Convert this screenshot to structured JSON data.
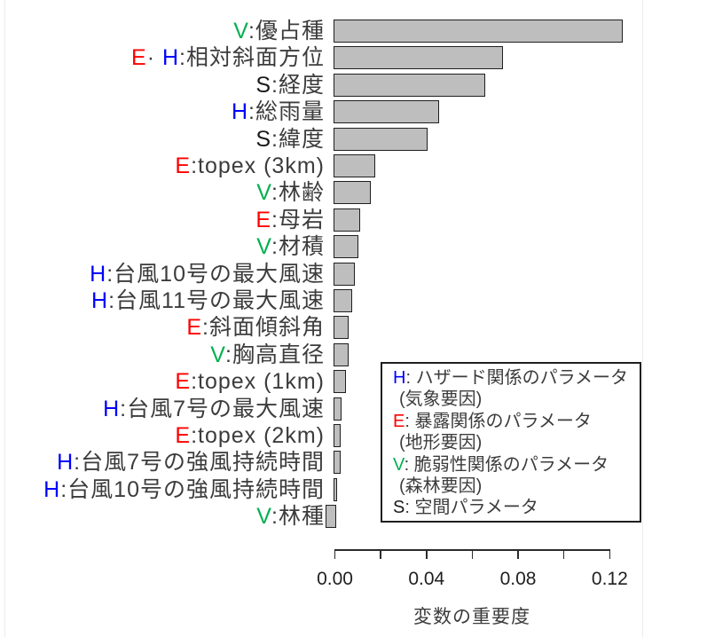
{
  "chart_data": {
    "type": "bar",
    "orientation": "horizontal",
    "xlabel": "変数の重要度",
    "xlim": [
      0,
      0.12
    ],
    "x_ticks": [
      {
        "value": 0.0,
        "label": "0.00"
      },
      {
        "value": 0.02,
        "label": ""
      },
      {
        "value": 0.04,
        "label": "0.04"
      },
      {
        "value": 0.06,
        "label": ""
      },
      {
        "value": 0.08,
        "label": "0.08"
      },
      {
        "value": 0.1,
        "label": ""
      },
      {
        "value": 0.12,
        "label": "0.12"
      }
    ],
    "grid": false,
    "bar_fill_color": "#BEBEBE",
    "bar_border_color": "#1F1F1F",
    "label_color": "#3C3C3C",
    "category_colors": {
      "H": "#0000FF",
      "E": "#FF0000",
      "V": "#00B050",
      "S": "#1A1A1A"
    },
    "items": [
      {
        "segments": [
          {
            "t": "V",
            "c": "V"
          },
          {
            "t": ":優占種",
            "c": null
          }
        ],
        "value": 0.125
      },
      {
        "segments": [
          {
            "t": "E",
            "c": "E"
          },
          {
            "t": "· ",
            "c": null
          },
          {
            "t": "H",
            "c": "H"
          },
          {
            "t": ":相対斜面方位",
            "c": null
          }
        ],
        "value": 0.073
      },
      {
        "segments": [
          {
            "t": "S",
            "c": "S"
          },
          {
            "t": ":経度",
            "c": null
          }
        ],
        "value": 0.065
      },
      {
        "segments": [
          {
            "t": "H",
            "c": "H"
          },
          {
            "t": ":総雨量",
            "c": null
          }
        ],
        "value": 0.045
      },
      {
        "segments": [
          {
            "t": "S",
            "c": "S"
          },
          {
            "t": ":緯度",
            "c": null
          }
        ],
        "value": 0.04
      },
      {
        "segments": [
          {
            "t": "E",
            "c": "E"
          },
          {
            "t": ":topex (3km)",
            "c": null
          }
        ],
        "value": 0.017
      },
      {
        "segments": [
          {
            "t": "V",
            "c": "V"
          },
          {
            "t": ":林齢",
            "c": null
          }
        ],
        "value": 0.015
      },
      {
        "segments": [
          {
            "t": "E",
            "c": "E"
          },
          {
            "t": ":母岩",
            "c": null
          }
        ],
        "value": 0.0105
      },
      {
        "segments": [
          {
            "t": "V",
            "c": "V"
          },
          {
            "t": ":材積",
            "c": null
          }
        ],
        "value": 0.0095
      },
      {
        "segments": [
          {
            "t": "H",
            "c": "H"
          },
          {
            "t": ":台風10号の最大風速",
            "c": null
          }
        ],
        "value": 0.008
      },
      {
        "segments": [
          {
            "t": "H",
            "c": "H"
          },
          {
            "t": ":台風11号の最大風速",
            "c": null
          }
        ],
        "value": 0.007
      },
      {
        "segments": [
          {
            "t": "E",
            "c": "E"
          },
          {
            "t": ":斜面傾斜角",
            "c": null
          }
        ],
        "value": 0.0056
      },
      {
        "segments": [
          {
            "t": "V",
            "c": "V"
          },
          {
            "t": ":胸高直径",
            "c": null
          }
        ],
        "value": 0.0055
      },
      {
        "segments": [
          {
            "t": "E",
            "c": "E"
          },
          {
            "t": ":topex (1km)",
            "c": null
          }
        ],
        "value": 0.0043
      },
      {
        "segments": [
          {
            "t": "H",
            "c": "H"
          },
          {
            "t": ":台風7号の最大風速",
            "c": null
          }
        ],
        "value": 0.0025
      },
      {
        "segments": [
          {
            "t": "E",
            "c": "E"
          },
          {
            "t": ":topex (2km)",
            "c": null
          }
        ],
        "value": 0.0021
      },
      {
        "segments": [
          {
            "t": "H",
            "c": "H"
          },
          {
            "t": ":台風7号の強風持続時間",
            "c": null
          }
        ],
        "value": 0.002
      },
      {
        "segments": [
          {
            "t": "H",
            "c": "H"
          },
          {
            "t": ":台風10号の強風持続時間",
            "c": null
          }
        ],
        "value": 0.0002
      },
      {
        "segments": [
          {
            "t": "V",
            "c": "V"
          },
          {
            "t": ":林種",
            "c": null
          }
        ],
        "value": -0.0035
      }
    ],
    "legend": {
      "position": "inside-right-bottom",
      "entries": [
        {
          "prefix": "H",
          "prefix_color": "H",
          "label": ": ハザード関係のパラメータ",
          "note": "(気象要因)"
        },
        {
          "prefix": "E",
          "prefix_color": "E",
          "label": ": 暴露関係のパラメータ",
          "note": "(地形要因)"
        },
        {
          "prefix": "V",
          "prefix_color": "V",
          "label": ": 脆弱性関係のパラメータ",
          "note": "(森林要因)"
        },
        {
          "prefix": "S",
          "prefix_color": "S",
          "label": ": 空間パラメータ",
          "note": null
        }
      ]
    }
  }
}
